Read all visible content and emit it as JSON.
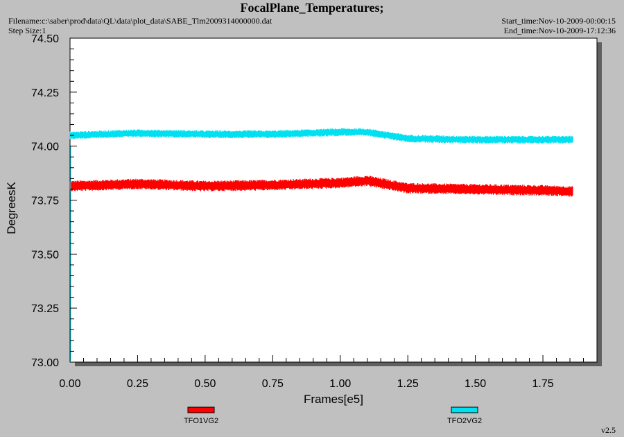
{
  "header": {
    "title": "FocalPlane_Temperatures;",
    "filename": "Filename:c:\\saber\\prod\\data\\QL\\data\\plot_data\\SABE_Tlm2009314000000.dat",
    "step_size": "Step Size:1",
    "start_time": "Start_time:Nov-10-2009-00:00:15",
    "end_time": "End_time:Nov-10-2009-17:12:36"
  },
  "version": "v2.5",
  "colors": {
    "series1": "#ff0000",
    "series2": "#00e0f0",
    "plot_bg": "#ffffff",
    "page_bg": "#c0c0c0"
  },
  "chart_data": {
    "type": "line",
    "title": "FocalPlane_Temperatures;",
    "xlabel": "Frames[e5]",
    "ylabel": "DegreesK",
    "xlim": [
      0.0,
      1.95
    ],
    "ylim": [
      73.0,
      74.5
    ],
    "x_ticks": [
      "0.00",
      "0.25",
      "0.50",
      "0.75",
      "1.00",
      "1.25",
      "1.50",
      "1.75"
    ],
    "y_ticks": [
      "74.50",
      "74.25",
      "74.00",
      "73.75",
      "73.50",
      "73.25",
      "73.00"
    ],
    "grid": false,
    "legend_position": "bottom",
    "x": [
      0.0,
      0.25,
      0.5,
      0.75,
      1.0,
      1.1,
      1.25,
      1.5,
      1.75,
      1.86
    ],
    "series": [
      {
        "name": "TFO1VG2",
        "color": "#ff0000",
        "values": [
          73.815,
          73.825,
          73.815,
          73.82,
          73.83,
          73.84,
          73.805,
          73.8,
          73.795,
          73.79
        ],
        "spread": 0.025
      },
      {
        "name": "TFO2VG2",
        "color": "#00e0f0",
        "values": [
          74.05,
          74.06,
          74.055,
          74.055,
          74.065,
          74.065,
          74.035,
          74.03,
          74.03,
          74.03
        ],
        "spread": 0.018
      }
    ]
  }
}
